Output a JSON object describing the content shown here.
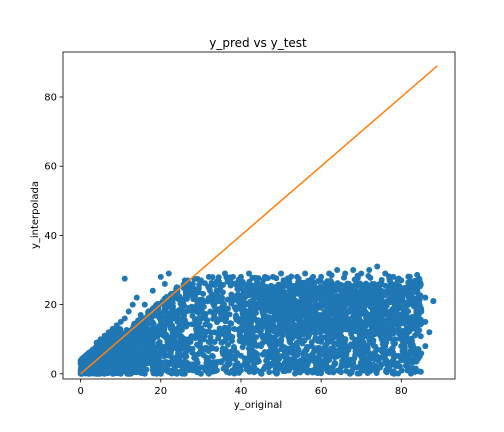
{
  "chart_data": {
    "type": "scatter",
    "title": "y_pred vs y_test",
    "xlabel": "y_original",
    "ylabel": "y_interpolada",
    "xlim": [
      -4.4,
      93.4
    ],
    "ylim": [
      -1.5,
      93.0
    ],
    "xticks": [
      0,
      20,
      40,
      60,
      80
    ],
    "yticks": [
      0,
      20,
      40,
      60,
      80
    ],
    "grid": false,
    "series": [
      {
        "type": "scatter",
        "color": "#1f77b4",
        "points": [
          [
            0,
            0
          ],
          [
            0.5,
            1
          ],
          [
            1,
            2
          ],
          [
            1.5,
            3
          ],
          [
            2,
            4
          ],
          [
            2.5,
            5
          ],
          [
            3,
            6
          ],
          [
            3.5,
            7
          ],
          [
            4,
            8
          ],
          [
            4.5,
            9
          ],
          [
            5,
            10
          ],
          [
            6,
            11
          ],
          [
            7,
            12
          ],
          [
            8,
            13
          ],
          [
            9,
            14
          ],
          [
            10,
            15
          ],
          [
            11,
            16
          ],
          [
            12,
            18
          ],
          [
            13,
            20
          ],
          [
            14,
            22
          ],
          [
            15,
            17
          ],
          [
            11,
            27.5
          ],
          [
            16,
            20
          ],
          [
            18,
            24
          ],
          [
            20,
            28
          ],
          [
            21,
            26
          ],
          [
            22,
            29
          ],
          [
            24,
            25
          ],
          [
            26,
            27
          ],
          [
            28,
            26
          ],
          [
            30,
            27
          ],
          [
            32,
            28
          ],
          [
            34,
            26
          ],
          [
            36,
            29
          ],
          [
            38,
            28
          ],
          [
            40,
            28
          ],
          [
            42,
            29
          ],
          [
            44,
            27
          ],
          [
            46,
            28
          ],
          [
            48,
            28
          ],
          [
            50,
            29
          ],
          [
            52,
            27
          ],
          [
            54,
            28
          ],
          [
            56,
            29
          ],
          [
            58,
            28
          ],
          [
            60,
            28
          ],
          [
            62,
            29
          ],
          [
            64,
            30
          ],
          [
            66,
            29
          ],
          [
            68,
            30
          ],
          [
            70,
            29
          ],
          [
            72,
            30
          ],
          [
            74,
            31
          ],
          [
            76,
            29
          ],
          [
            78,
            28
          ],
          [
            80,
            27
          ],
          [
            82,
            26
          ],
          [
            84,
            24
          ],
          [
            86,
            22
          ],
          [
            88,
            21
          ],
          [
            85,
            18
          ],
          [
            83,
            16
          ],
          [
            86,
            15
          ],
          [
            84,
            12
          ],
          [
            82,
            10
          ],
          [
            80,
            8
          ],
          [
            78,
            9
          ],
          [
            76,
            8
          ],
          [
            74,
            7
          ],
          [
            72,
            6
          ],
          [
            70,
            5
          ],
          [
            68,
            4
          ],
          [
            66,
            6
          ],
          [
            64,
            5
          ],
          [
            62,
            4
          ],
          [
            60,
            3
          ],
          [
            58,
            4
          ],
          [
            56,
            3
          ],
          [
            54,
            2
          ],
          [
            52,
            3
          ],
          [
            50,
            2
          ],
          [
            48,
            3
          ],
          [
            46,
            2
          ],
          [
            44,
            1
          ],
          [
            42,
            2
          ],
          [
            40,
            1
          ],
          [
            38,
            1
          ],
          [
            36,
            2
          ],
          [
            34,
            1
          ],
          [
            32,
            0
          ],
          [
            30,
            0
          ],
          [
            28,
            1
          ],
          [
            26,
            0
          ],
          [
            24,
            0
          ],
          [
            22,
            1
          ],
          [
            20,
            0
          ],
          [
            18,
            1
          ],
          [
            16,
            0
          ],
          [
            14,
            1
          ],
          [
            12,
            0
          ],
          [
            10,
            0
          ],
          [
            8,
            0
          ],
          [
            6,
            0
          ],
          [
            4,
            0
          ],
          [
            2,
            0
          ],
          [
            60,
            0.5
          ],
          [
            58,
            1
          ],
          [
            62,
            0.5
          ],
          [
            56,
            1
          ],
          [
            54,
            0.5
          ],
          [
            52,
            1
          ],
          [
            76,
            4
          ],
          [
            74,
            5
          ],
          [
            72,
            4
          ],
          [
            70,
            3
          ],
          [
            65,
            2
          ],
          [
            45,
            8
          ],
          [
            50,
            10
          ],
          [
            55,
            12
          ],
          [
            60,
            14
          ],
          [
            65,
            16
          ],
          [
            70,
            18
          ],
          [
            75,
            20
          ],
          [
            40,
            15
          ],
          [
            35,
            12
          ],
          [
            30,
            10
          ],
          [
            25,
            8
          ],
          [
            20,
            6
          ],
          [
            15,
            4
          ],
          [
            10,
            2
          ],
          [
            45,
            20
          ],
          [
            50,
            22
          ],
          [
            55,
            20
          ],
          [
            60,
            22
          ],
          [
            65,
            24
          ],
          [
            70,
            22
          ],
          [
            75,
            24
          ],
          [
            80,
            20
          ],
          [
            30,
            20
          ],
          [
            35,
            18
          ],
          [
            40,
            22
          ],
          [
            25,
            15
          ],
          [
            20,
            12
          ],
          [
            15,
            10
          ],
          [
            10,
            8
          ],
          [
            3,
            7
          ],
          [
            4,
            9
          ],
          [
            2,
            6
          ],
          [
            1,
            5
          ],
          [
            5,
            4
          ],
          [
            6,
            3
          ],
          [
            7,
            2
          ],
          [
            8,
            4
          ],
          [
            9,
            5
          ],
          [
            88,
            21
          ],
          [
            87,
            12
          ],
          [
            86,
            8
          ],
          [
            84,
            6
          ],
          [
            82,
            5
          ],
          [
            80,
            4
          ]
        ]
      },
      {
        "type": "line",
        "color": "#ff7f0e",
        "x": [
          0,
          89
        ],
        "y": [
          0,
          89
        ]
      }
    ]
  }
}
